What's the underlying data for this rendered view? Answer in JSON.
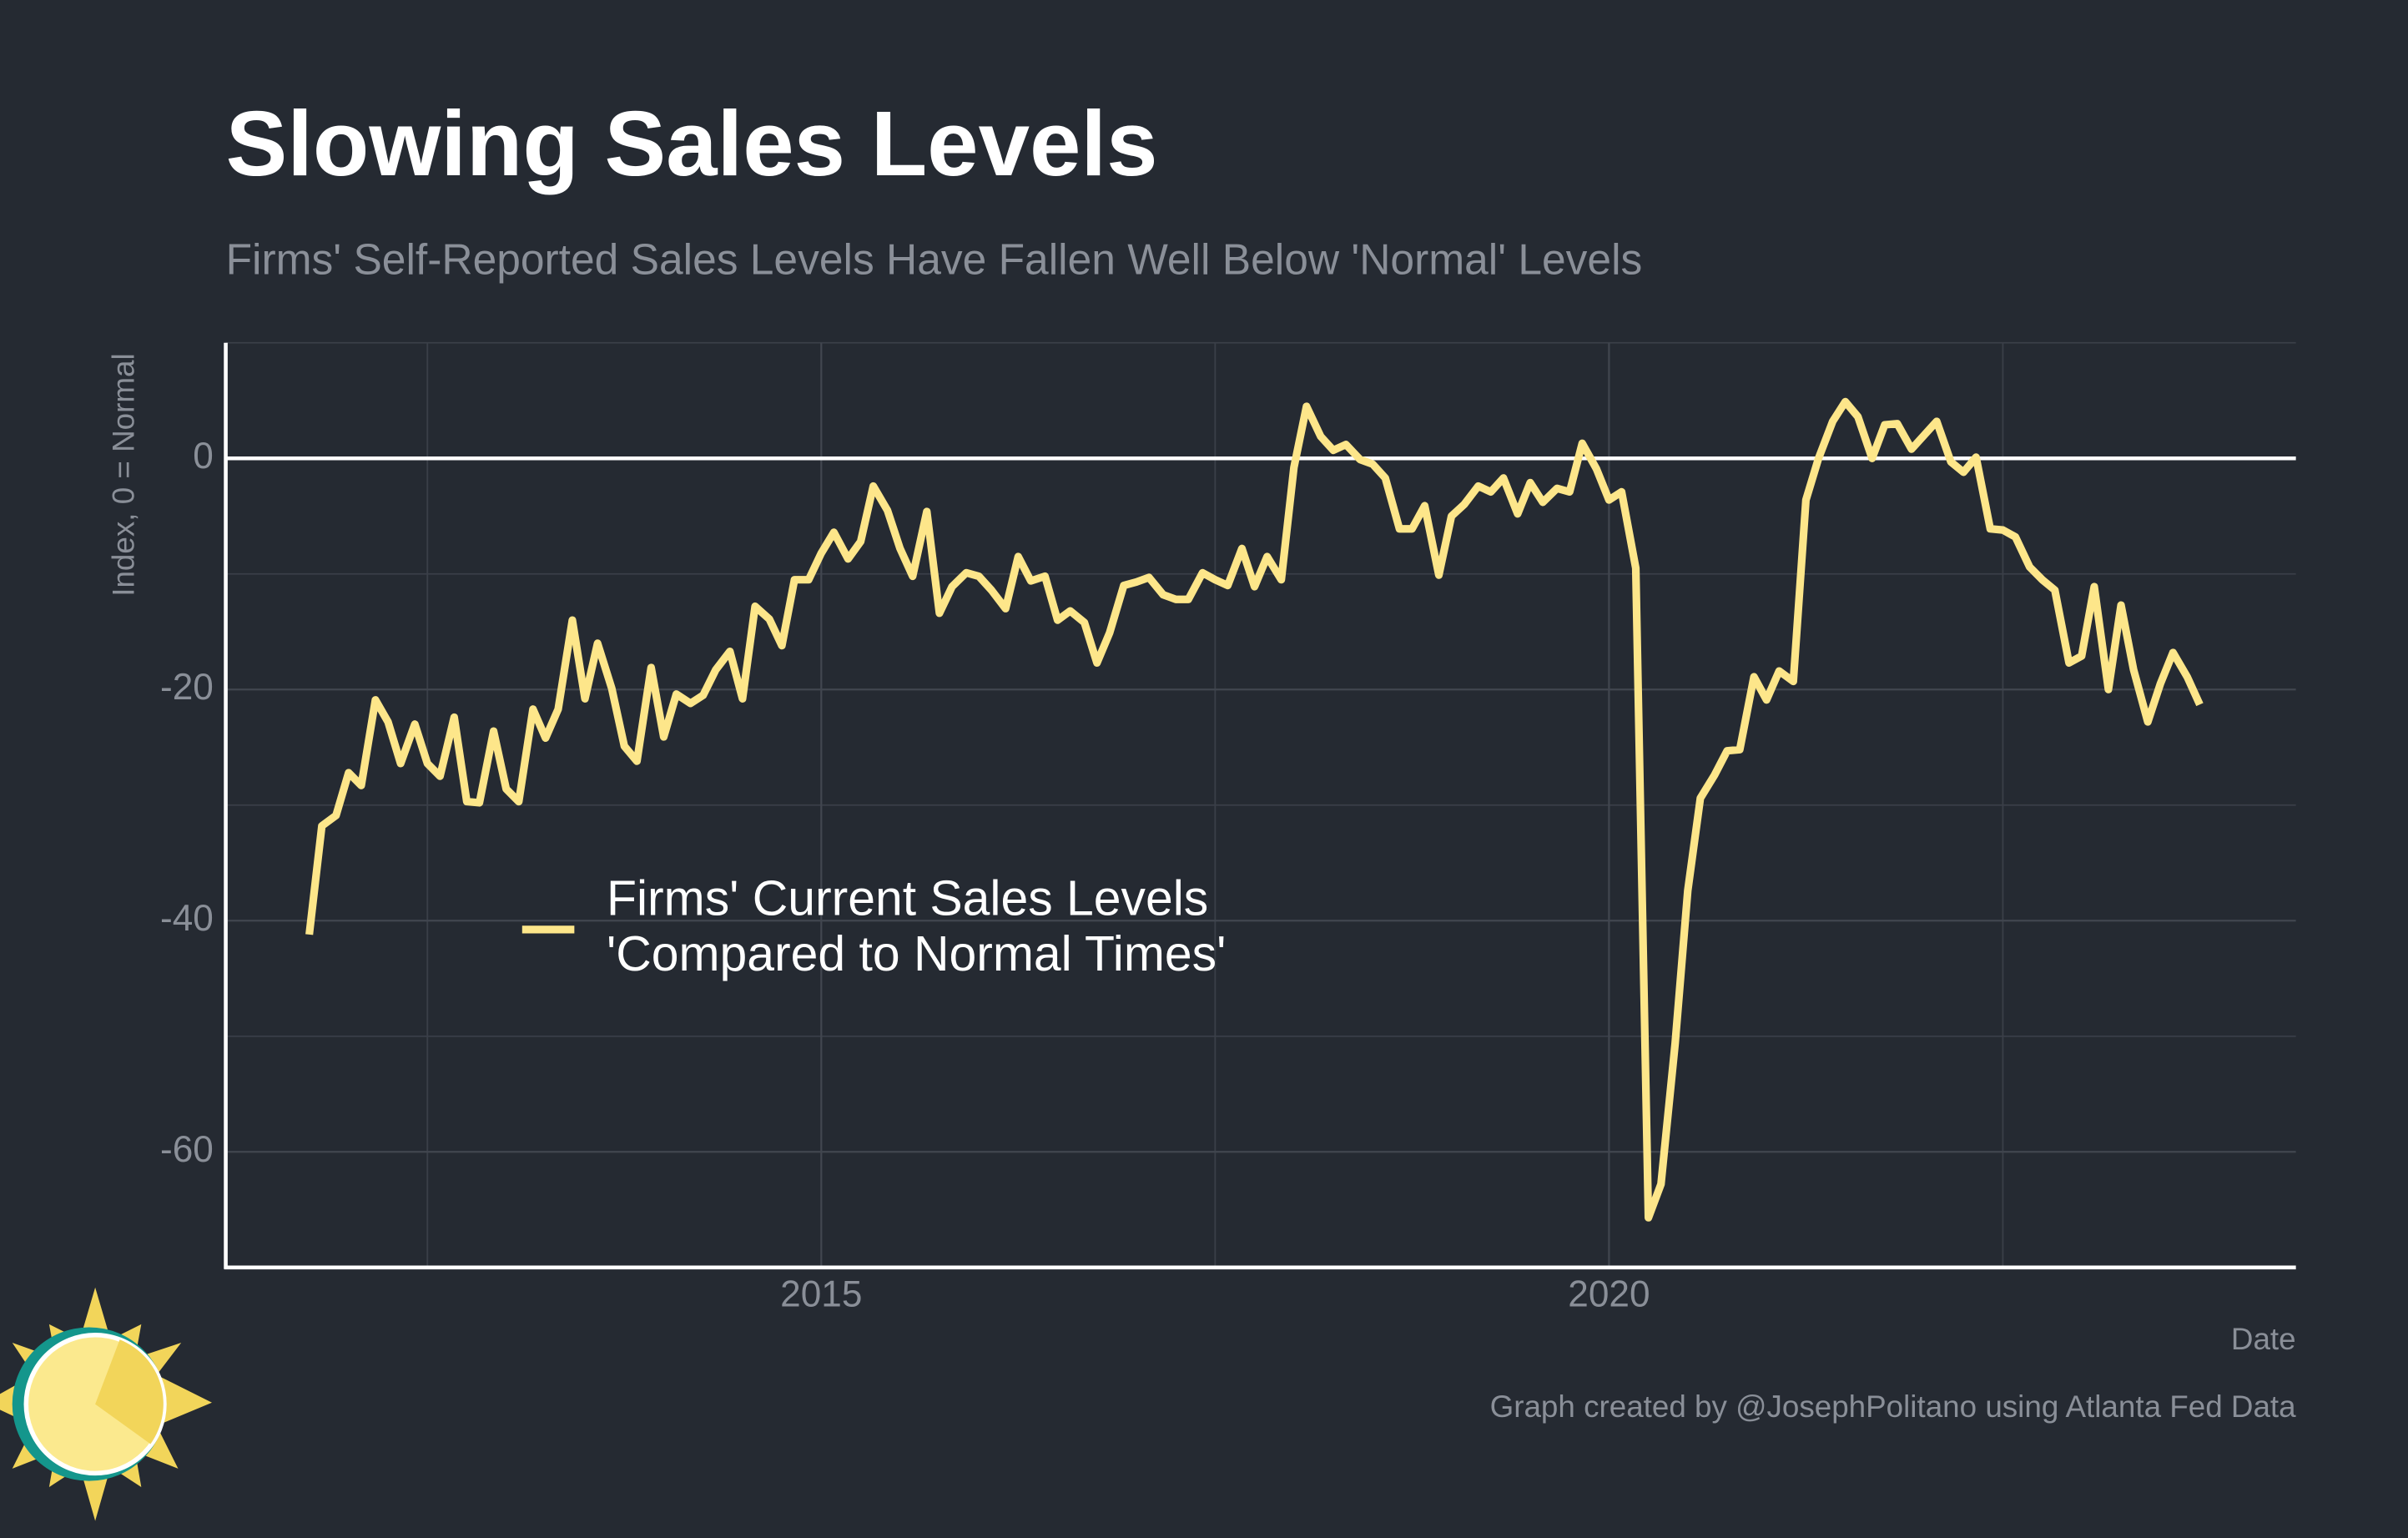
{
  "chart_data": {
    "type": "line",
    "title": "Slowing Sales Levels",
    "subtitle": "Firms' Self-Reported Sales Levels Have Fallen Well Below 'Normal' Levels",
    "x_label": "Date",
    "y_label": "Index, 0 = Normal",
    "caption": "Graph created by @JosephPolitano using Atlanta Fed Data",
    "xlim": [
      2011.22,
      2024.36
    ],
    "xticks": [
      2015,
      2020
    ],
    "x_minor_ticks": [
      2012.5,
      2017.5,
      2022.5
    ],
    "ylim": [
      -70,
      10
    ],
    "yticks": [
      -60,
      -40,
      -20,
      0
    ],
    "y_minor_ticks": [
      -70,
      -50,
      -30,
      -10,
      10
    ],
    "hline": 0,
    "grid": true,
    "legend_position": "inside",
    "x": [
      2011.75,
      2011.83,
      2011.92,
      2012.0,
      2012.08,
      2012.17,
      2012.25,
      2012.33,
      2012.42,
      2012.5,
      2012.58,
      2012.67,
      2012.75,
      2012.83,
      2012.92,
      2013.0,
      2013.08,
      2013.17,
      2013.25,
      2013.33,
      2013.42,
      2013.5,
      2013.58,
      2013.67,
      2013.75,
      2013.83,
      2013.92,
      2014.0,
      2014.08,
      2014.17,
      2014.25,
      2014.33,
      2014.42,
      2014.5,
      2014.58,
      2014.67,
      2014.75,
      2014.83,
      2014.92,
      2015.0,
      2015.08,
      2015.17,
      2015.25,
      2015.33,
      2015.42,
      2015.5,
      2015.58,
      2015.67,
      2015.75,
      2015.83,
      2015.92,
      2016.0,
      2016.08,
      2016.17,
      2016.25,
      2016.33,
      2016.42,
      2016.5,
      2016.58,
      2016.67,
      2016.75,
      2016.83,
      2016.92,
      2017.0,
      2017.08,
      2017.17,
      2017.25,
      2017.33,
      2017.42,
      2017.5,
      2017.58,
      2017.67,
      2017.75,
      2017.83,
      2017.92,
      2018.0,
      2018.08,
      2018.17,
      2018.25,
      2018.33,
      2018.42,
      2018.5,
      2018.58,
      2018.67,
      2018.75,
      2018.83,
      2018.92,
      2019.0,
      2019.08,
      2019.17,
      2019.25,
      2019.33,
      2019.42,
      2019.5,
      2019.58,
      2019.67,
      2019.75,
      2019.83,
      2019.92,
      2020.0,
      2020.08,
      2020.17,
      2020.25,
      2020.33,
      2020.42,
      2020.5,
      2020.58,
      2020.67,
      2020.75,
      2020.83,
      2020.92,
      2021.0,
      2021.08,
      2021.17,
      2021.25,
      2021.33,
      2021.42,
      2021.5,
      2021.58,
      2021.67,
      2021.75,
      2021.83,
      2021.92,
      2022.0,
      2022.08,
      2022.17,
      2022.25,
      2022.33,
      2022.42,
      2022.5,
      2022.58,
      2022.67,
      2022.75,
      2022.83,
      2022.92,
      2023.0,
      2023.08,
      2023.17,
      2023.25,
      2023.33,
      2023.42,
      2023.5,
      2023.58,
      2023.67,
      2023.75
    ],
    "series": [
      {
        "name": "Firms' Current Sales Levels\n'Compared to Normal Times'",
        "color": "#fde68a",
        "values": [
          -41.2,
          -31.8,
          -30.9,
          -27.2,
          -28.3,
          -20.9,
          -22.8,
          -26.4,
          -23,
          -26.4,
          -27.5,
          -22.4,
          -29.7,
          -29.8,
          -23.6,
          -28.6,
          -29.7,
          -21.7,
          -24.2,
          -21.7,
          -14,
          -20.8,
          -16,
          -19.9,
          -24.9,
          -26.2,
          -18.1,
          -24.1,
          -20.4,
          -21.2,
          -20.5,
          -18.3,
          -16.7,
          -20.8,
          -12.8,
          -13.9,
          -16.2,
          -10.5,
          -10.5,
          -8.2,
          -6.4,
          -8.7,
          -7.2,
          -2.4,
          -4.5,
          -7.8,
          -10.2,
          -4.6,
          -13.4,
          -11.1,
          -9.9,
          -10.2,
          -11.4,
          -13,
          -8.5,
          -10.6,
          -10.2,
          -14,
          -13.2,
          -14.2,
          -17.7,
          -15.1,
          -11,
          -10.7,
          -10.3,
          -11.8,
          -12.2,
          -12.2,
          -9.9,
          -10.5,
          -11,
          -7.8,
          -11.1,
          -8.5,
          -10.5,
          -0.8,
          4.5,
          1.9,
          0.7,
          1.2,
          -0.1,
          -0.5,
          -1.7,
          -6.1,
          -6.1,
          -4.1,
          -10.1,
          -5,
          -4,
          -2.4,
          -2.9,
          -1.7,
          -4.8,
          -2.1,
          -3.8,
          -2.6,
          -2.9,
          1.3,
          -0.9,
          -3.6,
          -2.9,
          -9.5,
          -65.7,
          -62.8,
          -50.6,
          -37.4,
          -29.4,
          -27.4,
          -25.3,
          -25.2,
          -18.9,
          -20.9,
          -18.4,
          -19.3,
          -3.6,
          0,
          3.2,
          4.9,
          3.6,
          0,
          2.9,
          3,
          0.8,
          2,
          3.2,
          -0.3,
          -1.2,
          0.1,
          -6.1,
          -6.2,
          -6.8,
          -9.4,
          -10.5,
          -11.4,
          -17.7,
          -17.1,
          -11.1,
          -20,
          -12.7,
          -18.3,
          -22.8,
          -19.5,
          -16.8,
          -18.9,
          -21.3
        ]
      }
    ]
  }
}
